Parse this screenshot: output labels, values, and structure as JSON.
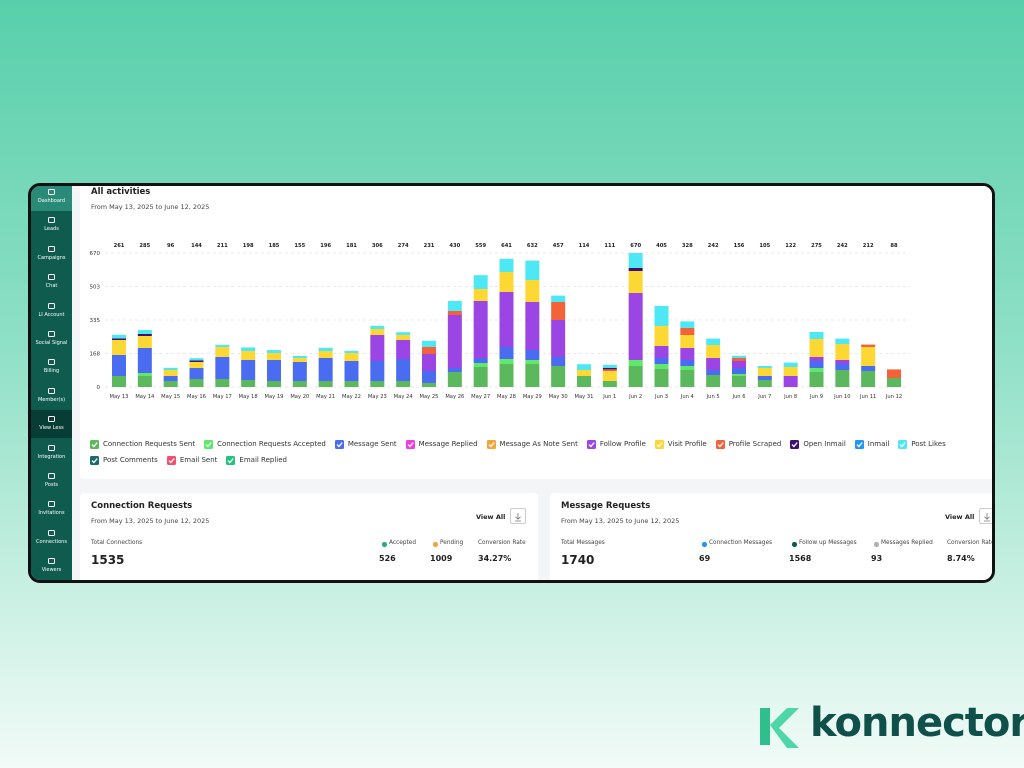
{
  "sidebar": {
    "items": [
      "Dashboard",
      "Leads",
      "Campaigns",
      "Chat",
      "LI Account",
      "Social Signal",
      "Billing",
      "Member(s)",
      "View Less",
      "Integration",
      "Posts",
      "Invitations",
      "Connections",
      "Viewers"
    ]
  },
  "chart_data": {
    "type": "bar",
    "stacked": true,
    "title": "All activities",
    "subtitle": "From May 13, 2025 to June 12, 2025",
    "categories": [
      "May 13",
      "May 14",
      "May 15",
      "May 16",
      "May 17",
      "May 18",
      "May 19",
      "May 20",
      "May 21",
      "May 22",
      "May 23",
      "May 24",
      "May 25",
      "May 26",
      "May 27",
      "May 28",
      "May 29",
      "May 30",
      "May 31",
      "Jun 1",
      "Jun 2",
      "Jun 3",
      "Jun 4",
      "Jun 5",
      "Jun 6",
      "Jun 7",
      "Jun 8",
      "Jun 9",
      "Jun 10",
      "Jun 11",
      "Jun 12"
    ],
    "totals": [
      261,
      285,
      96,
      144,
      211,
      198,
      185,
      155,
      196,
      181,
      306,
      274,
      231,
      430,
      559,
      641,
      632,
      457,
      114,
      111,
      670,
      405,
      328,
      242,
      156,
      105,
      122,
      275,
      242,
      212,
      88
    ],
    "ylim": [
      0,
      670
    ],
    "yticks": [
      0,
      168,
      335,
      503,
      670
    ],
    "grid": true,
    "series": [
      {
        "name": "Connection Requests Sent",
        "color": "#5cb85c",
        "values": [
          55,
          55,
          30,
          40,
          40,
          35,
          30,
          30,
          30,
          30,
          30,
          30,
          20,
          75,
          100,
          115,
          115,
          105,
          55,
          30,
          105,
          90,
          85,
          60,
          55,
          35,
          0,
          75,
          85,
          80,
          45
        ]
      },
      {
        "name": "Connection Requests Accepted",
        "color": "#5fe86a",
        "values": [
          0,
          15,
          0,
          0,
          0,
          0,
          0,
          0,
          0,
          0,
          0,
          0,
          0,
          0,
          20,
          25,
          20,
          0,
          0,
          0,
          30,
          25,
          20,
          0,
          10,
          0,
          0,
          20,
          0,
          0,
          0
        ]
      },
      {
        "name": "Message Sent",
        "color": "#4a6cf0",
        "values": [
          105,
          125,
          25,
          55,
          110,
          100,
          105,
          95,
          115,
          100,
          100,
          110,
          60,
          20,
          25,
          60,
          50,
          45,
          0,
          0,
          0,
          30,
          30,
          25,
          30,
          20,
          0,
          35,
          30,
          25,
          0
        ]
      },
      {
        "name": "Message Replied",
        "color": "#f03ce0",
        "values": [
          0,
          0,
          0,
          0,
          0,
          0,
          0,
          0,
          0,
          0,
          0,
          0,
          0,
          0,
          0,
          0,
          0,
          0,
          0,
          0,
          0,
          0,
          0,
          0,
          0,
          0,
          0,
          0,
          0,
          0,
          0
        ]
      },
      {
        "name": "Message As Note Sent",
        "color": "#f5a33c",
        "values": [
          0,
          0,
          0,
          0,
          0,
          0,
          0,
          0,
          0,
          0,
          0,
          0,
          0,
          0,
          0,
          0,
          0,
          0,
          0,
          0,
          0,
          0,
          0,
          0,
          0,
          0,
          0,
          0,
          0,
          0,
          0
        ]
      },
      {
        "name": "Follow Profile",
        "color": "#9b45e4",
        "values": [
          0,
          0,
          0,
          0,
          0,
          0,
          0,
          0,
          0,
          0,
          130,
          95,
          85,
          265,
          285,
          275,
          240,
          185,
          0,
          0,
          335,
          60,
          60,
          60,
          35,
          0,
          55,
          20,
          20,
          0,
          0
        ]
      },
      {
        "name": "Visit Profile",
        "color": "#fdd835",
        "values": [
          75,
          60,
          30,
          30,
          50,
          45,
          35,
          20,
          35,
          40,
          30,
          25,
          0,
          0,
          60,
          100,
          110,
          0,
          30,
          50,
          110,
          100,
          65,
          65,
          0,
          40,
          45,
          90,
          80,
          95,
          0
        ]
      },
      {
        "name": "Profile Scraped",
        "color": "#f4623a",
        "values": [
          0,
          0,
          0,
          0,
          0,
          0,
          0,
          0,
          0,
          0,
          0,
          0,
          35,
          20,
          0,
          0,
          0,
          90,
          0,
          8,
          0,
          0,
          35,
          0,
          15,
          0,
          0,
          0,
          0,
          12,
          43
        ]
      },
      {
        "name": "Open Inmail",
        "color": "#3d1170",
        "values": [
          8,
          10,
          0,
          8,
          0,
          0,
          0,
          0,
          0,
          0,
          0,
          0,
          0,
          0,
          0,
          0,
          0,
          0,
          0,
          8,
          15,
          0,
          0,
          0,
          0,
          0,
          0,
          0,
          0,
          0,
          0
        ]
      },
      {
        "name": "Inmail",
        "color": "#2196f3",
        "values": [
          0,
          0,
          0,
          0,
          0,
          0,
          0,
          0,
          0,
          0,
          0,
          0,
          0,
          0,
          0,
          0,
          0,
          0,
          0,
          0,
          0,
          0,
          0,
          0,
          0,
          0,
          0,
          0,
          0,
          0,
          0
        ]
      },
      {
        "name": "Post Likes",
        "color": "#4de8f4",
        "values": [
          18,
          20,
          11,
          11,
          11,
          18,
          15,
          10,
          16,
          11,
          16,
          14,
          31,
          50,
          69,
          66,
          97,
          32,
          29,
          15,
          75,
          100,
          33,
          32,
          11,
          10,
          22,
          35,
          27,
          0,
          0
        ]
      },
      {
        "name": "Post Comments",
        "color": "#1b6b6b",
        "values": [
          0,
          0,
          0,
          0,
          0,
          0,
          0,
          0,
          0,
          0,
          0,
          0,
          0,
          0,
          0,
          0,
          0,
          0,
          0,
          0,
          0,
          0,
          0,
          0,
          0,
          0,
          0,
          0,
          0,
          0,
          0
        ]
      },
      {
        "name": "Email Sent",
        "color": "#f0506e",
        "values": [
          0,
          0,
          0,
          0,
          0,
          0,
          0,
          0,
          0,
          0,
          0,
          0,
          0,
          0,
          0,
          0,
          0,
          0,
          0,
          0,
          0,
          0,
          0,
          0,
          0,
          0,
          0,
          0,
          0,
          0,
          0
        ]
      },
      {
        "name": "Email Replied",
        "color": "#26c281",
        "values": [
          0,
          0,
          0,
          0,
          0,
          0,
          0,
          0,
          0,
          0,
          0,
          0,
          0,
          0,
          0,
          0,
          0,
          0,
          0,
          0,
          0,
          0,
          0,
          0,
          0,
          0,
          0,
          0,
          0,
          0,
          0
        ]
      }
    ]
  },
  "connection_requests": {
    "title": "Connection Requests",
    "subtitle": "From May 13, 2025 to June 12, 2025",
    "view_all": "View All",
    "total_label": "Total Connections",
    "total": 1535,
    "stats": [
      {
        "label": "Accepted",
        "value": 526,
        "dot": "#26b07a"
      },
      {
        "label": "Pending",
        "value": 1009,
        "dot": "#f5a33c"
      },
      {
        "label": "Conversion Rate",
        "value": "34.27%"
      }
    ]
  },
  "message_requests": {
    "title": "Message Requests",
    "subtitle": "From May 13, 2025 to June 12, 2025",
    "view_all": "View All",
    "total_label": "Total Messages",
    "total": 1740,
    "stats": [
      {
        "label": "Connection Messages",
        "value": 69,
        "dot": "#2196f3"
      },
      {
        "label": "Follow up Messages",
        "value": 1568,
        "dot": "#0f5c4f"
      },
      {
        "label": "Messages Replied",
        "value": 93,
        "dot": "#b0b0b0"
      },
      {
        "label": "Conversion Rate",
        "value": "8.74%"
      }
    ]
  },
  "brand": "konnector"
}
